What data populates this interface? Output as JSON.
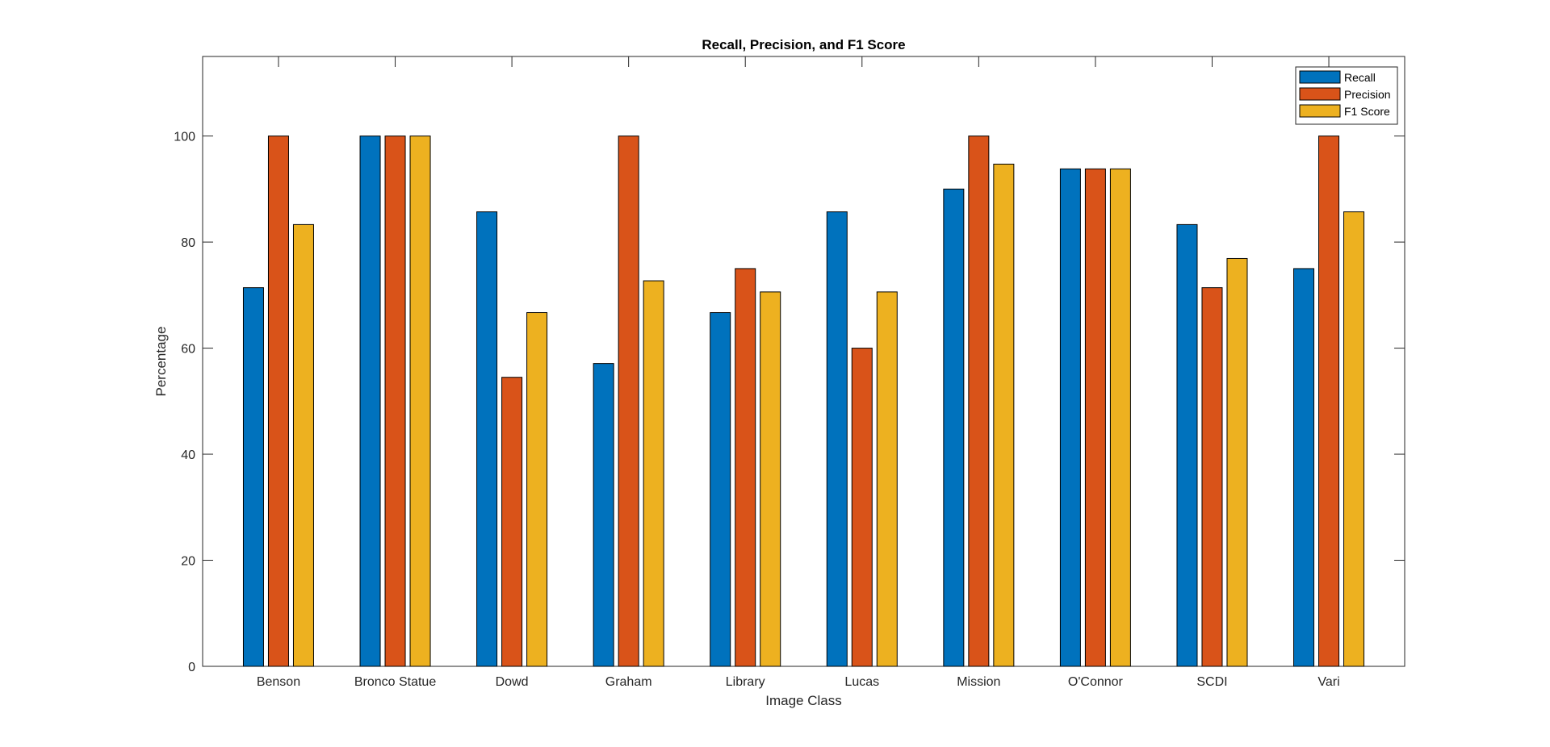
{
  "chart_data": {
    "type": "bar",
    "title": "Recall, Precision, and F1 Score",
    "xlabel": "Image Class",
    "ylabel": "Percentage",
    "ylim": [
      0,
      115
    ],
    "yticks": [
      0,
      20,
      40,
      60,
      80,
      100
    ],
    "grid": false,
    "legend_position": "top-right",
    "categories": [
      "Benson",
      "Bronco Statue",
      "Dowd",
      "Graham",
      "Library",
      "Lucas",
      "Mission",
      "O'Connor",
      "SCDI",
      "Vari"
    ],
    "series": [
      {
        "name": "Recall",
        "color": "#0072BD",
        "values": [
          71.4,
          100,
          85.7,
          57.1,
          66.7,
          85.7,
          90,
          93.8,
          83.3,
          75
        ]
      },
      {
        "name": "Precision",
        "color": "#D95319",
        "values": [
          100,
          100,
          54.5,
          100,
          75,
          60,
          100,
          93.8,
          71.4,
          100
        ]
      },
      {
        "name": "F1 Score",
        "color": "#EDB120",
        "values": [
          83.3,
          100,
          66.7,
          72.7,
          70.6,
          70.6,
          94.7,
          93.8,
          76.9,
          85.7
        ]
      }
    ]
  }
}
